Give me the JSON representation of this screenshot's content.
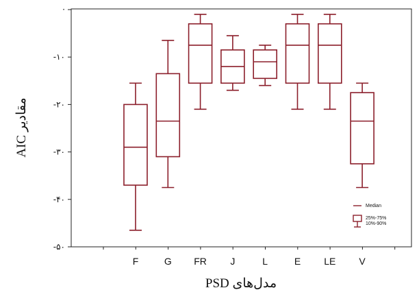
{
  "chart_data": {
    "type": "box",
    "xlabel": "مدل‌های PSD",
    "ylabel": "مقادیر AIC",
    "ylim": [
      -50,
      5
    ],
    "grid": false,
    "yticks": [
      {
        "value": 0,
        "label": "·"
      },
      {
        "value": -10,
        "label": "-۱۰"
      },
      {
        "value": -20,
        "label": "-۲۰"
      },
      {
        "value": -30,
        "label": "-۳۰"
      },
      {
        "value": -40,
        "label": "-۴۰"
      },
      {
        "value": -50,
        "label": "-۵۰"
      }
    ],
    "categories": [
      "F",
      "G",
      "FR",
      "J",
      "L",
      "E",
      "LE",
      "V"
    ],
    "boxes": [
      {
        "category": "F",
        "p10": -46.5,
        "q1": -37.0,
        "median": -29.0,
        "q3": -20.0,
        "p90": -15.5
      },
      {
        "category": "G",
        "p10": -37.5,
        "q1": -31.0,
        "median": -23.5,
        "q3": -13.5,
        "p90": -6.5
      },
      {
        "category": "FR",
        "p10": -21.0,
        "q1": -15.5,
        "median": -7.5,
        "q3": -3.0,
        "p90": -1.0
      },
      {
        "category": "J",
        "p10": -17.0,
        "q1": -15.5,
        "median": -12.0,
        "q3": -8.5,
        "p90": -5.5
      },
      {
        "category": "L",
        "p10": -16.0,
        "q1": -14.5,
        "median": -11.0,
        "q3": -8.5,
        "p90": -7.5
      },
      {
        "category": "E",
        "p10": -21.0,
        "q1": -15.5,
        "median": -7.5,
        "q3": -3.0,
        "p90": -1.0
      },
      {
        "category": "LE",
        "p10": -21.0,
        "q1": -15.5,
        "median": -7.5,
        "q3": -3.0,
        "p90": -1.0
      },
      {
        "category": "V",
        "p10": -37.5,
        "q1": -32.5,
        "median": -23.5,
        "q3": -17.5,
        "p90": -15.5
      }
    ],
    "legend": {
      "placement": "bottom-right",
      "entries": [
        {
          "symbol": "line",
          "label": "Median"
        },
        {
          "symbol": "box",
          "label": "25%-75%"
        },
        {
          "symbol": "whisker",
          "label": "10%-90%"
        }
      ]
    },
    "color": "#8b1e2a"
  }
}
